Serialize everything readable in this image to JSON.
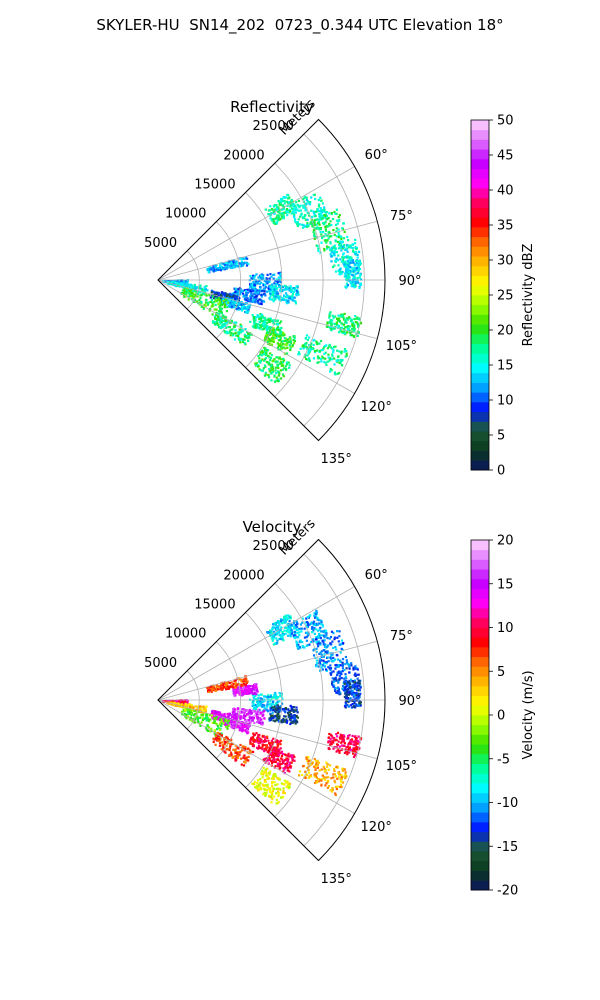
{
  "figure": {
    "suptitle": "SKYLER-HU  SN14_202  0723_0.344 UTC Elevation 18°"
  },
  "chart_data": [
    {
      "type": "polar-sector",
      "title": "Reflectivity",
      "radial_label": "Meters",
      "r_ticks": [
        5000,
        10000,
        15000,
        20000,
        25000
      ],
      "r_lim": [
        0,
        27500
      ],
      "theta_ticks": [
        "60°",
        "75°",
        "90°",
        "105°",
        "120°",
        "135°"
      ],
      "theta_tick_values": [
        60,
        75,
        90,
        105,
        120,
        135
      ],
      "theta_lim": [
        45,
        135
      ],
      "colorbar": {
        "label": "Reflectivity dBZ",
        "ticks": [
          0,
          5,
          10,
          15,
          20,
          25,
          30,
          35,
          40,
          45,
          50
        ],
        "range": [
          0,
          50
        ],
        "stops": [
          "#0a1560",
          "#0b3a1e",
          "#1c5a3a",
          "#0018ff",
          "#00a0ff",
          "#00ffff",
          "#00ff90",
          "#30e000",
          "#a0ff00",
          "#ffff00",
          "#ffc000",
          "#ff7000",
          "#ff0000",
          "#ff0060",
          "#ff00ff",
          "#c000ff",
          "#e070ff",
          "#ffd8ff"
        ]
      },
      "echo_regions": [
        {
          "az": [
            56,
            64
          ],
          "r": [
            15500,
            19000
          ],
          "value": 17
        },
        {
          "az": [
            60,
            70
          ],
          "r": [
            18000,
            22000
          ],
          "value": 16
        },
        {
          "az": [
            68,
            80
          ],
          "r": [
            19500,
            23500
          ],
          "value": 18
        },
        {
          "az": [
            78,
            88
          ],
          "r": [
            21000,
            24500
          ],
          "value": 15
        },
        {
          "az": [
            84,
            92
          ],
          "r": [
            22500,
            24500
          ],
          "value": 14
        },
        {
          "az": [
            86,
            96
          ],
          "r": [
            11000,
            15000
          ],
          "value": 12
        },
        {
          "az": [
            92,
            100
          ],
          "r": [
            13500,
            17000
          ],
          "value": 14
        },
        {
          "az": [
            95,
            103
          ],
          "r": [
            9000,
            13000
          ],
          "value": 11
        },
        {
          "az": [
            100,
            108
          ],
          "r": [
            6500,
            10000
          ],
          "value": 8
        },
        {
          "az": [
            104,
            110
          ],
          "r": [
            8000,
            11500
          ],
          "value": 13
        },
        {
          "az": [
            108,
            116
          ],
          "r": [
            12000,
            16000
          ],
          "value": 17
        },
        {
          "az": [
            112,
            120
          ],
          "r": [
            14500,
            18000
          ],
          "value": 20
        },
        {
          "az": [
            88,
            96
          ],
          "r": [
            500,
            3500
          ],
          "value": 12
        },
        {
          "az": [
            96,
            106
          ],
          "r": [
            1000,
            6000
          ],
          "value": 15
        },
        {
          "az": [
            105,
            122
          ],
          "r": [
            3000,
            9000
          ],
          "value": 20
        },
        {
          "az": [
            118,
            128
          ],
          "r": [
            8000,
            13000
          ],
          "value": 18
        },
        {
          "az": [
            122,
            132
          ],
          "r": [
            15000,
            19000
          ],
          "value": 19
        },
        {
          "az": [
            100,
            106
          ],
          "r": [
            21000,
            25000
          ],
          "value": 18
        },
        {
          "az": [
            110,
            118
          ],
          "r": [
            19000,
            24500
          ],
          "value": 17
        },
        {
          "az": [
            74,
            80
          ],
          "r": [
            6000,
            11000
          ],
          "value": 12
        }
      ]
    },
    {
      "type": "polar-sector",
      "title": "Velocity",
      "radial_label": "Meters",
      "r_ticks": [
        5000,
        10000,
        15000,
        20000,
        25000
      ],
      "r_lim": [
        0,
        27500
      ],
      "theta_ticks": [
        "60°",
        "75°",
        "90°",
        "105°",
        "120°",
        "135°"
      ],
      "theta_tick_values": [
        60,
        75,
        90,
        105,
        120,
        135
      ],
      "theta_lim": [
        45,
        135
      ],
      "colorbar": {
        "label": "Velocity (m/s)",
        "ticks": [
          -20,
          -15,
          -10,
          -5,
          0,
          5,
          10,
          15,
          20
        ],
        "range": [
          -20,
          20
        ],
        "stops": [
          "#0a1560",
          "#0b3a1e",
          "#1c5a3a",
          "#0018ff",
          "#00a0ff",
          "#00ffff",
          "#00ff90",
          "#30e000",
          "#a0ff00",
          "#ffff00",
          "#ffc000",
          "#ff7000",
          "#ff0000",
          "#ff0060",
          "#ff00ff",
          "#c000ff",
          "#e070ff",
          "#ffd8ff"
        ]
      },
      "echo_regions": [
        {
          "az": [
            56,
            64
          ],
          "r": [
            15500,
            19000
          ],
          "value": -9
        },
        {
          "az": [
            60,
            70
          ],
          "r": [
            18000,
            22000
          ],
          "value": -10
        },
        {
          "az": [
            68,
            80
          ],
          "r": [
            19500,
            23500
          ],
          "value": -11
        },
        {
          "az": [
            78,
            88
          ],
          "r": [
            21000,
            24500
          ],
          "value": -12
        },
        {
          "az": [
            84,
            92
          ],
          "r": [
            22500,
            24500
          ],
          "value": -13
        },
        {
          "az": [
            86,
            96
          ],
          "r": [
            11000,
            15000
          ],
          "value": -9
        },
        {
          "az": [
            92,
            100
          ],
          "r": [
            13500,
            17000
          ],
          "value": -14
        },
        {
          "az": [
            80,
            86
          ],
          "r": [
            9000,
            12000
          ],
          "value": 15
        },
        {
          "az": [
            95,
            103
          ],
          "r": [
            9000,
            13000
          ],
          "value": 16
        },
        {
          "az": [
            100,
            108
          ],
          "r": [
            6500,
            10000
          ],
          "value": 14
        },
        {
          "az": [
            104,
            110
          ],
          "r": [
            8000,
            11500
          ],
          "value": 15
        },
        {
          "az": [
            108,
            116
          ],
          "r": [
            12000,
            16000
          ],
          "value": 9
        },
        {
          "az": [
            112,
            120
          ],
          "r": [
            14500,
            18000
          ],
          "value": 10
        },
        {
          "az": [
            88,
            96
          ],
          "r": [
            500,
            3500
          ],
          "value": 11
        },
        {
          "az": [
            96,
            106
          ],
          "r": [
            1000,
            6000
          ],
          "value": 3
        },
        {
          "az": [
            105,
            122
          ],
          "r": [
            3000,
            9000
          ],
          "value": -3
        },
        {
          "az": [
            118,
            128
          ],
          "r": [
            8000,
            13000
          ],
          "value": 7
        },
        {
          "az": [
            122,
            132
          ],
          "r": [
            15000,
            19000
          ],
          "value": 1
        },
        {
          "az": [
            100,
            106
          ],
          "r": [
            21000,
            25000
          ],
          "value": 10
        },
        {
          "az": [
            110,
            118
          ],
          "r": [
            19000,
            24500
          ],
          "value": 4
        },
        {
          "az": [
            74,
            80
          ],
          "r": [
            6000,
            11000
          ],
          "value": 7
        }
      ]
    }
  ]
}
